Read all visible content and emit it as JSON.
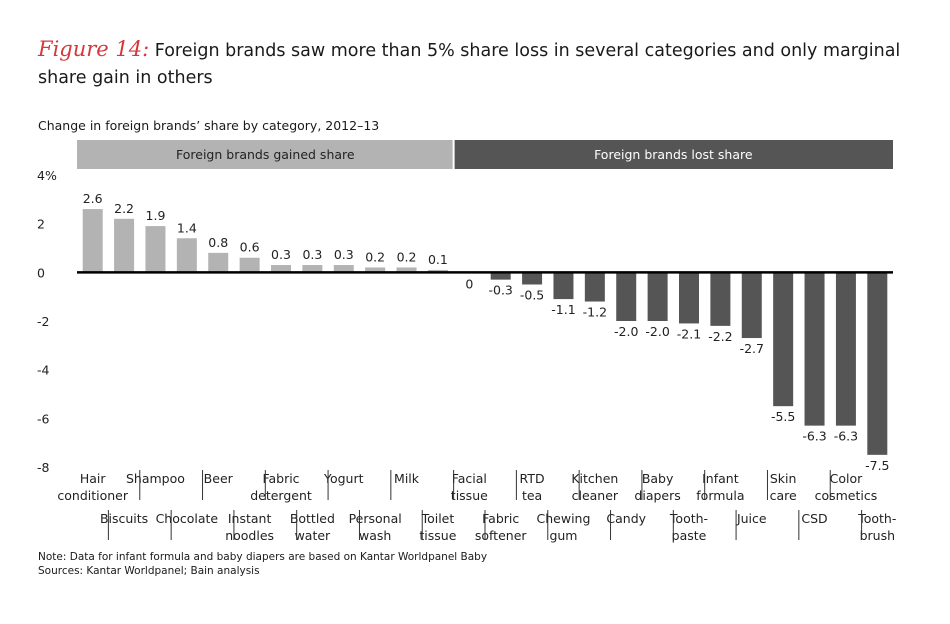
{
  "figure_label": "Figure 14:",
  "title": "Foreign brands saw more than 5% share loss in several categories and only marginal share gain in others",
  "subtitle": "Change in foreign brands’ share by category, 2012–13",
  "note": "Note: Data for infant formula and baby diapers are based on Kantar Worldpanel Baby",
  "sources": "Sources: Kantar Worldpanel; Bain analysis",
  "colors": {
    "gained": "#b3b3b3",
    "lost": "#555555",
    "accent": "#d5373d"
  },
  "chart_data": {
    "type": "bar",
    "ylim": [
      -8,
      4
    ],
    "yticks": [
      -8,
      -6,
      -4,
      -2,
      0,
      2,
      4
    ],
    "ytick_labels": [
      "-8",
      "-6",
      "-4",
      "-2",
      "0",
      "2",
      "4%"
    ],
    "group_labels": {
      "gained": "Foreign brands gained share",
      "lost": "Foreign brands lost share"
    },
    "categories": [
      [
        "Hair",
        "conditioner"
      ],
      [
        "Biscuits"
      ],
      [
        "Shampoo"
      ],
      [
        "Chocolate"
      ],
      [
        "Beer"
      ],
      [
        "Instant",
        "noodles"
      ],
      [
        "Fabric",
        "detergent"
      ],
      [
        "Bottled",
        "water"
      ],
      [
        "Yogurt"
      ],
      [
        "Personal",
        "wash"
      ],
      [
        "Milk"
      ],
      [
        "Toilet",
        "tissue"
      ],
      [
        "Facial",
        "tissue"
      ],
      [
        "Fabric",
        "softener"
      ],
      [
        "RTD",
        "tea"
      ],
      [
        "Chewing",
        "gum"
      ],
      [
        "Kitchen",
        "cleaner"
      ],
      [
        "Candy"
      ],
      [
        "Baby",
        "diapers"
      ],
      [
        "Tooth-",
        "paste"
      ],
      [
        "Infant",
        "formula"
      ],
      [
        "Juice"
      ],
      [
        "Skin",
        "care"
      ],
      [
        "CSD"
      ],
      [
        "Color",
        "cosmetics"
      ],
      [
        "Tooth-",
        "brush"
      ]
    ],
    "values": [
      2.6,
      2.2,
      1.9,
      1.4,
      0.8,
      0.6,
      0.3,
      0.3,
      0.3,
      0.2,
      0.2,
      0.1,
      0,
      -0.3,
      -0.5,
      -1.1,
      -1.2,
      -2.0,
      -2.0,
      -2.1,
      -2.2,
      -2.7,
      -5.5,
      -6.3,
      -6.3,
      -7.5
    ],
    "value_labels": [
      "2.6",
      "2.2",
      "1.9",
      "1.4",
      "0.8",
      "0.6",
      "0.3",
      "0.3",
      "0.3",
      "0.2",
      "0.2",
      "0.1",
      "0",
      "-0.3",
      "-0.5",
      "-1.1",
      "-1.2",
      "-2.0",
      "-2.0",
      "-2.1",
      "-2.2",
      "-2.7",
      "-5.5",
      "-6.3",
      "-6.3",
      "-7.5"
    ]
  }
}
